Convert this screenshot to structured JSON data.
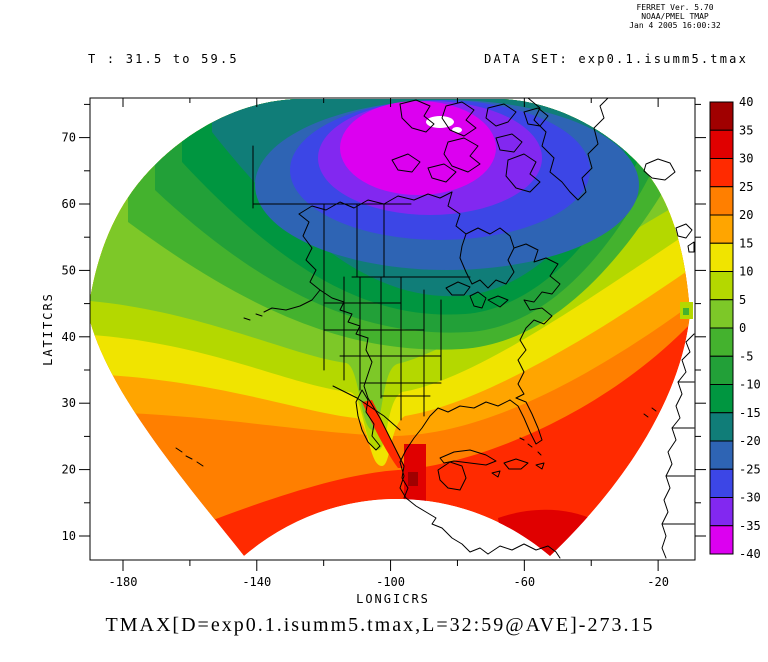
{
  "header": {
    "line1": "FERRET Ver. 5.70",
    "line2": "NOAA/PMEL TMAP",
    "line3": "Jan 4 2005 16:00:32"
  },
  "subtitles": {
    "time_range": "T : 31.5 to 59.5",
    "dataset": "DATA SET: exp0.1.isumm5.tmax"
  },
  "title": "TMAX[D=exp0.1.isumm5.tmax,L=32:59@AVE]-273.15",
  "chart_data": {
    "type": "heatmap",
    "title": "TMAX[D=exp0.1.isumm5.tmax,L=32:59@AVE]-273.15",
    "subtitle_left": "T : 31.5 to 59.5",
    "subtitle_right": "DATA SET: exp0.1.isumm5.tmax",
    "xlabel": "LONGICRS",
    "ylabel": "LATITCRS",
    "xlim": [
      -190,
      -9
    ],
    "ylim": [
      5,
      76
    ],
    "x_ticks": [
      -180,
      -140,
      -100,
      -60,
      -20
    ],
    "x_minor_ticks": [
      -160,
      -120,
      -80,
      -40
    ],
    "y_ticks": [
      10,
      20,
      30,
      40,
      50,
      60,
      70
    ],
    "y_minor_ticks": [
      15,
      25,
      35,
      45,
      55,
      65,
      75
    ],
    "grid": false,
    "legend_position": "vertical colorbar at right",
    "colorbar": {
      "levels": [
        -40,
        -35,
        -30,
        -25,
        -20,
        -15,
        -10,
        -5,
        0,
        5,
        10,
        15,
        20,
        25,
        30,
        35,
        40
      ],
      "tick_labels_top_to_bottom": [
        "40",
        "35",
        "30",
        "25",
        "20",
        "15",
        "10",
        "5",
        "0",
        "-5",
        "-10",
        "-15",
        "-20",
        "-25",
        "-30",
        "-35",
        "-40"
      ],
      "colors_top_to_bottom": [
        "#a00000",
        "#e00000",
        "#ff2a00",
        "#ff7f00",
        "#ffa500",
        "#f0e400",
        "#b4d800",
        "#7dc828",
        "#44b22e",
        "#22a038",
        "#009640",
        "#107d78",
        "#2e64b4",
        "#3c46e6",
        "#8228f0",
        "#dc00f0"
      ]
    },
    "description": "Filled-contour map of time-averaged maximum surface air temperature (deg C) on a curvilinear Lambert-type grid over North America. The data region is fan shaped: a magenta/violet cold core (-40 to -30) sits over the Canadian Arctic near 65-75N, grading through blue (-30 to -20), teal (-20 to -15) and greens (-15 to 0) across Canada and Alaska, yellow-green and yellow (0 to 15) across the northern/central US, orange (15 to 25) across the southern US and Atlantic, and red (25 to 30) with small dark-red patches (30 to 40) over Mexico, the Gulf of Mexico and the Caribbean near 10-20N. Coastlines and state/country borders are overlaid in black; areas outside the curvilinear grid (central Pacific, tropics south of the grid, eastern Atlantic/West Africa) are white."
  }
}
